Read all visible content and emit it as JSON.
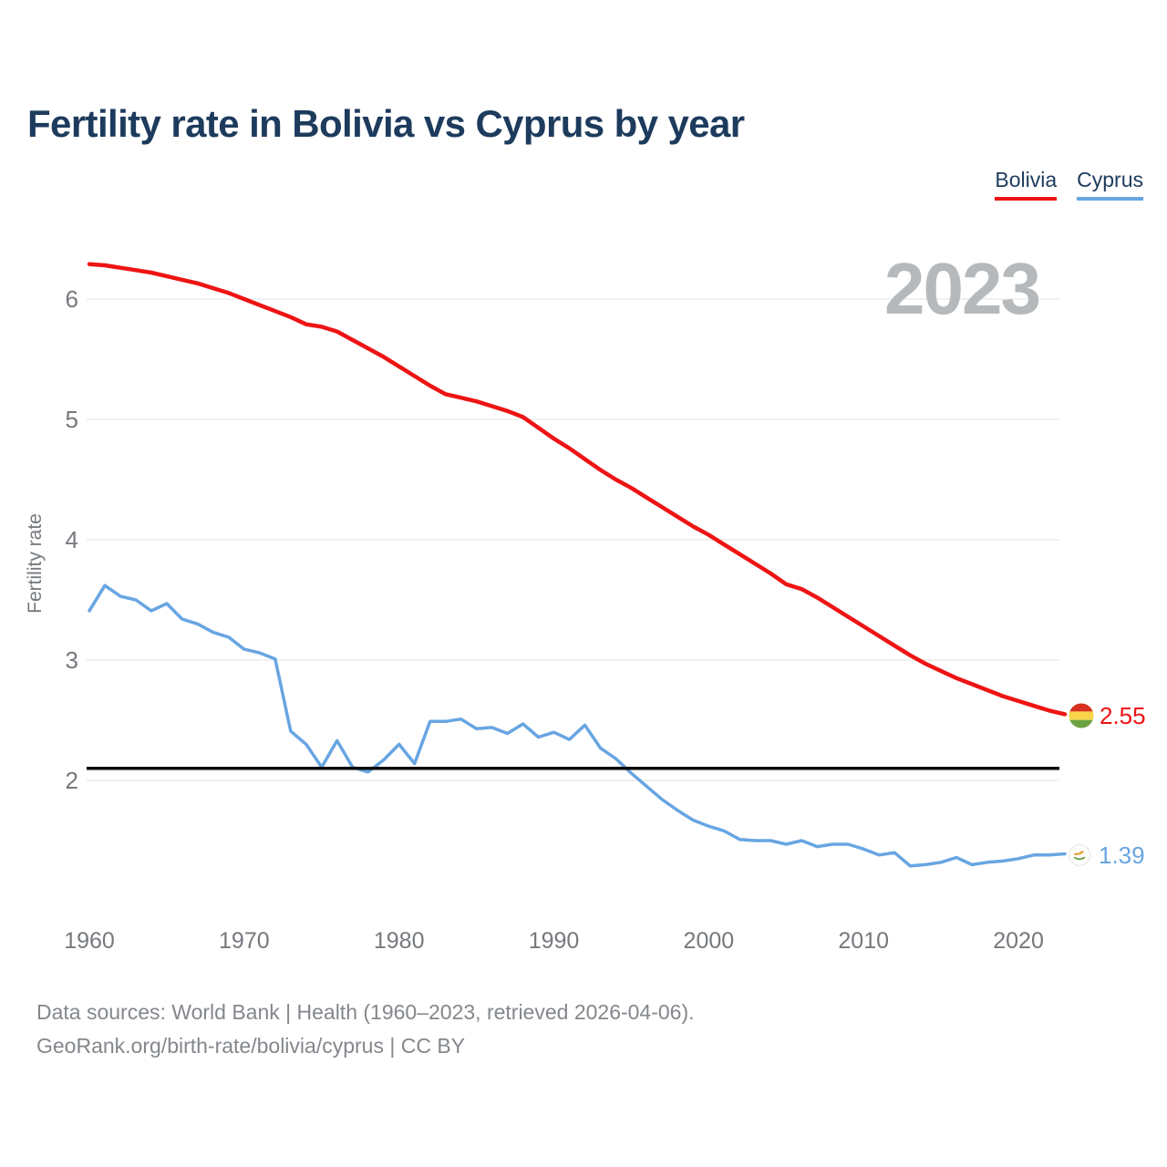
{
  "title": "Fertility rate in Bolivia vs Cyprus by year",
  "legend": {
    "items": [
      {
        "label": "Bolivia",
        "color": "#ee1414"
      },
      {
        "label": "Cyprus",
        "color": "#68a5e2"
      }
    ]
  },
  "watermark": "2023",
  "end_labels": {
    "bolivia": "2.55",
    "cyprus": "1.39"
  },
  "footer": {
    "line1": "Data sources: World Bank | Health (1960–2023, retrieved 2026-04-06).",
    "line2": "GeoRank.org/birth-rate/bolivia/cyprus | CC BY"
  },
  "chart_data": {
    "type": "line",
    "title": "Fertility rate in Bolivia vs Cyprus by year",
    "xlabel": "",
    "ylabel": "Fertility rate",
    "xlim": [
      1960,
      2023
    ],
    "ylim": [
      1.2,
      6.5
    ],
    "x_ticks": [
      1960,
      1970,
      1980,
      1990,
      2000,
      2010,
      2020
    ],
    "y_ticks": [
      2,
      3,
      4,
      5,
      6
    ],
    "grid": "horizontal",
    "legend_position": "top-right",
    "reference_line": {
      "value": 2.1,
      "color": "#0a0a0a"
    },
    "x": [
      1960,
      1961,
      1962,
      1963,
      1964,
      1965,
      1966,
      1967,
      1968,
      1969,
      1970,
      1971,
      1972,
      1973,
      1974,
      1975,
      1976,
      1977,
      1978,
      1979,
      1980,
      1981,
      1982,
      1983,
      1984,
      1985,
      1986,
      1987,
      1988,
      1989,
      1990,
      1991,
      1992,
      1993,
      1994,
      1995,
      1996,
      1997,
      1998,
      1999,
      2000,
      2001,
      2002,
      2003,
      2004,
      2005,
      2006,
      2007,
      2008,
      2009,
      2010,
      2011,
      2012,
      2013,
      2014,
      2015,
      2016,
      2017,
      2018,
      2019,
      2020,
      2021,
      2022,
      2023
    ],
    "series": [
      {
        "name": "Bolivia",
        "color": "#ee1414",
        "values": [
          6.29,
          6.28,
          6.26,
          6.24,
          6.22,
          6.19,
          6.16,
          6.13,
          6.09,
          6.05,
          6.0,
          5.95,
          5.9,
          5.85,
          5.79,
          5.77,
          5.73,
          5.66,
          5.59,
          5.52,
          5.44,
          5.36,
          5.28,
          5.21,
          5.18,
          5.15,
          5.11,
          5.07,
          5.02,
          4.93,
          4.84,
          4.76,
          4.67,
          4.58,
          4.5,
          4.43,
          4.35,
          4.27,
          4.19,
          4.11,
          4.04,
          3.96,
          3.88,
          3.8,
          3.72,
          3.63,
          3.59,
          3.52,
          3.44,
          3.36,
          3.28,
          3.2,
          3.12,
          3.04,
          2.97,
          2.91,
          2.85,
          2.8,
          2.75,
          2.7,
          2.66,
          2.62,
          2.58,
          2.55
        ]
      },
      {
        "name": "Cyprus",
        "color": "#68a5e2",
        "values": [
          3.41,
          3.62,
          3.53,
          3.5,
          3.41,
          3.47,
          3.34,
          3.3,
          3.23,
          3.19,
          3.09,
          3.06,
          3.01,
          2.41,
          2.3,
          2.11,
          2.33,
          2.11,
          2.07,
          2.17,
          2.3,
          2.14,
          2.49,
          2.49,
          2.51,
          2.43,
          2.44,
          2.39,
          2.47,
          2.36,
          2.4,
          2.34,
          2.46,
          2.27,
          2.18,
          2.06,
          1.95,
          1.84,
          1.75,
          1.67,
          1.62,
          1.58,
          1.51,
          1.5,
          1.5,
          1.47,
          1.5,
          1.45,
          1.47,
          1.47,
          1.43,
          1.38,
          1.4,
          1.29,
          1.3,
          1.32,
          1.36,
          1.3,
          1.32,
          1.33,
          1.35,
          1.38,
          1.38,
          1.39
        ]
      }
    ]
  }
}
